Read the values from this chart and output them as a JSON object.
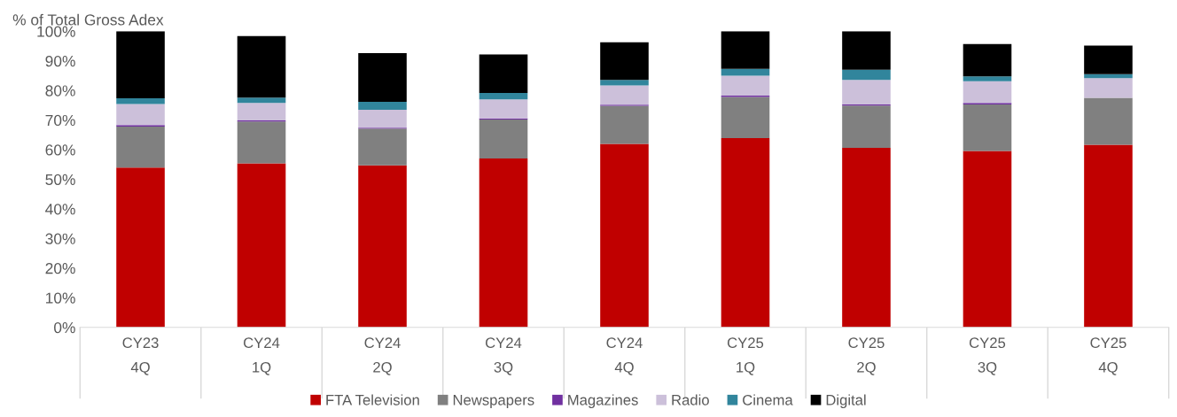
{
  "chart_data": {
    "type": "bar",
    "stacked": true,
    "ylabel": "% of Total Gross Adex",
    "categories": [
      "CY23\n4Q",
      "CY24\n1Q",
      "CY24\n2Q",
      "CY24\n3Q",
      "CY24\n4Q",
      "CY25\n1Q",
      "CY25\n2Q",
      "CY25\n3Q",
      "CY25\n4Q"
    ],
    "series": [
      {
        "name": "FTA Television",
        "color": "#c00000",
        "values": [
          54.0,
          55.4,
          54.7,
          57.0,
          62.0,
          63.9,
          60.6,
          59.6,
          61.7
        ]
      },
      {
        "name": "Newspapers",
        "color": "#808080",
        "values": [
          13.8,
          14.1,
          12.4,
          13.2,
          12.8,
          13.9,
          14.3,
          15.7,
          15.8
        ]
      },
      {
        "name": "Magazines",
        "color": "#7030a0",
        "values": [
          0.5,
          0.4,
          0.3,
          0.4,
          0.4,
          0.5,
          0.4,
          0.5,
          0.0
        ]
      },
      {
        "name": "Radio",
        "color": "#ccc0da",
        "values": [
          7.1,
          5.9,
          6.1,
          6.4,
          6.5,
          6.7,
          8.3,
          7.3,
          6.7
        ]
      },
      {
        "name": "Cinema",
        "color": "#31859c",
        "values": [
          2.0,
          1.8,
          2.7,
          2.2,
          1.9,
          2.3,
          3.4,
          1.7,
          1.3
        ]
      },
      {
        "name": "Digital",
        "color": "#000000",
        "values": [
          22.6,
          20.8,
          16.4,
          13.0,
          12.7,
          12.7,
          13.0,
          10.9,
          9.7
        ]
      }
    ],
    "ylim": [
      0,
      100
    ],
    "yticks": [
      {
        "value": 0,
        "label": "0%"
      },
      {
        "value": 10,
        "label": "10%"
      },
      {
        "value": 20,
        "label": "20%"
      },
      {
        "value": 30,
        "label": "30%"
      },
      {
        "value": 40,
        "label": "40%"
      },
      {
        "value": 50,
        "label": "50%"
      },
      {
        "value": 60,
        "label": "60%"
      },
      {
        "value": 70,
        "label": "70%"
      },
      {
        "value": 80,
        "label": "80%"
      },
      {
        "value": 90,
        "label": "90%"
      },
      {
        "value": 100,
        "label": "100%"
      }
    ],
    "grid": false,
    "legend": "bottom"
  }
}
